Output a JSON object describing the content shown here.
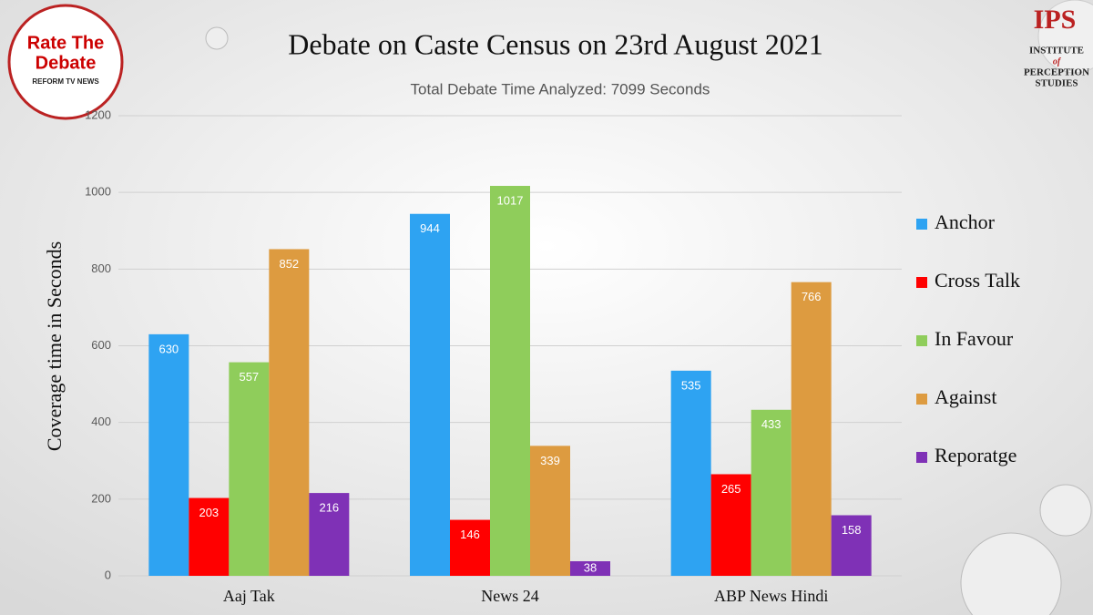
{
  "chart_data": {
    "type": "bar",
    "title": "Debate on Caste Census on 23rd August 2021",
    "subtitle": "Total Debate Time Analyzed: 7099 Seconds",
    "y_label": "Coverage time in Seconds",
    "categories": [
      "Aaj Tak",
      "News 24",
      "ABP News Hindi"
    ],
    "series": [
      {
        "name": "Anchor",
        "color": "#2ea3f2",
        "values": [
          630,
          944,
          535
        ]
      },
      {
        "name": "Cross Talk",
        "color": "#ff0000",
        "values": [
          203,
          146,
          265
        ]
      },
      {
        "name": "In Favour",
        "color": "#8fcd5b",
        "values": [
          557,
          1017,
          433
        ]
      },
      {
        "name": "Against",
        "color": "#dd9b40",
        "values": [
          852,
          339,
          766
        ]
      },
      {
        "name": "Reporatge",
        "color": "#7f31b6",
        "values": [
          216,
          38,
          158
        ]
      }
    ],
    "ylim": [
      0,
      1200
    ],
    "yticks": [
      0,
      200,
      400,
      600,
      800,
      1000,
      1200
    ],
    "grid": true,
    "legend": "right"
  },
  "logos": {
    "left": [
      "Rate The",
      "Debate",
      "REFORM TV NEWS"
    ],
    "right": [
      "IPS",
      "INSTITUTE",
      "of",
      "PERCEPTION",
      "STUDIES"
    ]
  }
}
